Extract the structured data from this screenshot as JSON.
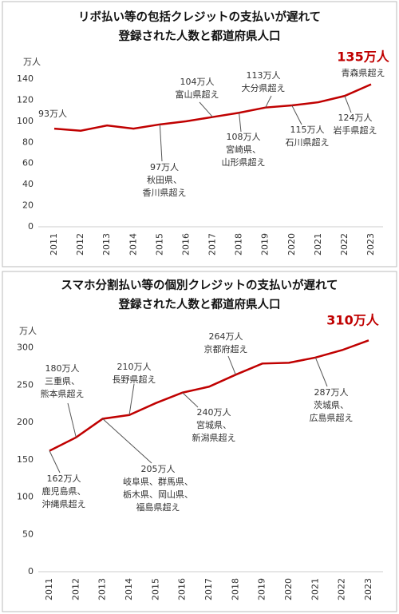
{
  "chart_data": [
    {
      "type": "line",
      "title": [
        "リボ払い等の包括クレジットの支払いが遅れて",
        "登録された人数と都道府県人口"
      ],
      "y_unit": "万人",
      "categories": [
        "2011",
        "2012",
        "2013",
        "2014",
        "2015",
        "2016",
        "2017",
        "2018",
        "2019",
        "2020",
        "2021",
        "2022",
        "2023"
      ],
      "values": [
        93,
        91,
        96,
        93,
        97,
        100,
        104,
        108,
        113,
        115,
        118,
        124,
        135
      ],
      "color": "#c00000",
      "ylim": [
        0,
        140
      ],
      "yticks": [
        0,
        20,
        40,
        60,
        80,
        100,
        120,
        140
      ],
      "grid": false,
      "annotations": [
        {
          "category": "2011",
          "lines": [
            "93万人"
          ]
        },
        {
          "category": "2015",
          "lines": [
            "97万人",
            "秋田県、",
            "香川県超え"
          ]
        },
        {
          "category": "2017",
          "lines": [
            "104万人",
            "富山県超え"
          ]
        },
        {
          "category": "2018",
          "lines": [
            "108万人",
            "宮崎県、",
            "山形県超え"
          ]
        },
        {
          "category": "2019",
          "lines": [
            "113万人",
            "大分県超え"
          ]
        },
        {
          "category": "2020",
          "lines": [
            "115万人",
            "石川県超え"
          ]
        },
        {
          "category": "2022",
          "lines": [
            "124万人",
            "岩手県超え"
          ]
        },
        {
          "category": "2023",
          "lines": [
            "135万人",
            "青森県超え"
          ],
          "highlight": true
        }
      ]
    },
    {
      "type": "line",
      "title": [
        "スマホ分割払い等の個別クレジットの支払いが遅れて",
        "登録された人数と都道府県人口"
      ],
      "y_unit": "万人",
      "categories": [
        "2011",
        "2012",
        "2013",
        "2014",
        "2015",
        "2016",
        "2017",
        "2018",
        "2019",
        "2020",
        "2021",
        "2022",
        "2023"
      ],
      "values": [
        162,
        180,
        205,
        210,
        226,
        240,
        248,
        264,
        279,
        280,
        287,
        297,
        310
      ],
      "color": "#c00000",
      "ylim": [
        0,
        320
      ],
      "yticks": [
        0,
        50,
        100,
        150,
        200,
        250,
        300
      ],
      "grid": false,
      "annotations": [
        {
          "category": "2011",
          "lines": [
            "162万人",
            "鹿児島県、",
            "沖縄県超え"
          ]
        },
        {
          "category": "2012",
          "lines": [
            "180万人",
            "三重県、",
            "熊本県超え"
          ]
        },
        {
          "category": "2013",
          "lines": [
            "205万人",
            "岐阜県、群馬県、",
            "栃木県、岡山県、",
            "福島県超え"
          ]
        },
        {
          "category": "2014",
          "lines": [
            "210万人",
            "長野県超え"
          ]
        },
        {
          "category": "2016",
          "lines": [
            "240万人",
            "宮城県、",
            "新潟県超え"
          ]
        },
        {
          "category": "2018",
          "lines": [
            "264万人",
            "京都府超え"
          ]
        },
        {
          "category": "2021",
          "lines": [
            "287万人",
            "茨城県、",
            "広島県超え"
          ]
        },
        {
          "category": "2023",
          "lines": [
            "310万人"
          ],
          "highlight": true
        }
      ]
    }
  ]
}
